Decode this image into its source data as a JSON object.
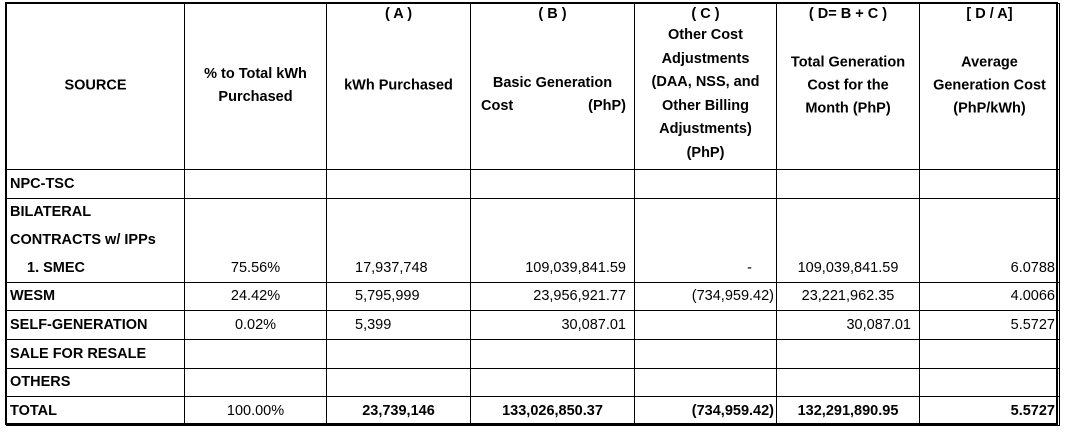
{
  "header": {
    "source": "SOURCE",
    "pct_total": [
      "% to Total kWh",
      "Purchased"
    ],
    "kwh": {
      "code": "( A )",
      "label": "kWh Purchased"
    },
    "basic": {
      "code": "( B )",
      "line1": "Basic Generation",
      "line2a": "Cost",
      "line2b": "(PhP)"
    },
    "other": {
      "code": "( C )",
      "lines": [
        "Other Cost",
        "Adjustments",
        "(DAA, NSS, and",
        "Other Billing",
        "Adjustments)",
        "(PhP)"
      ]
    },
    "total_gen": {
      "code": "( D= B + C )",
      "lines": [
        "Total Generation",
        "Cost for the",
        "Month (PhP)"
      ]
    },
    "avg_gen": {
      "code": "[ D / A]",
      "lines": [
        "Average",
        "Generation Cost",
        "(PhP/kWh)"
      ]
    }
  },
  "rows": {
    "npc": {
      "source": "NPC-TSC"
    },
    "bilateral": {
      "source_line1": "BILATERAL",
      "source_line2": "CONTRACTS w/ IPPs"
    },
    "smec": {
      "source": "1.  SMEC",
      "pct": "75.56%",
      "kwh": "17,937,748",
      "basic": "109,039,841.59",
      "other": "-",
      "total": "109,039,841.59",
      "avg": "6.0788"
    },
    "wesm": {
      "source": "WESM",
      "pct": "24.42%",
      "kwh": "5,795,999",
      "basic": "23,956,921.77",
      "other": "(734,959.42)",
      "total": "23,221,962.35",
      "avg": "4.0066"
    },
    "selfgen": {
      "source": "SELF-GENERATION",
      "pct": "0.02%",
      "kwh": "5,399",
      "basic": "30,087.01",
      "other": "",
      "total": "30,087.01",
      "avg": "5.5727"
    },
    "resale": {
      "source": "SALE FOR RESALE"
    },
    "others": {
      "source": "OTHERS"
    },
    "total": {
      "source": "TOTAL",
      "pct": "100.00%",
      "kwh": "23,739,146",
      "basic": "133,026,850.37",
      "other": "(734,959.42)",
      "total": "132,291,890.95",
      "avg": "5.5727"
    }
  }
}
